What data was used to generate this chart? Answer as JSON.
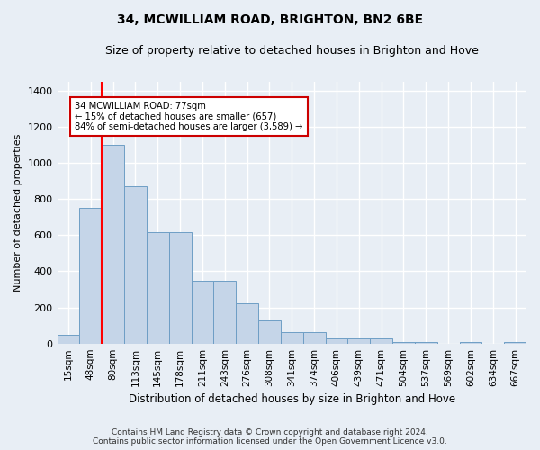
{
  "title": "34, MCWILLIAM ROAD, BRIGHTON, BN2 6BE",
  "subtitle": "Size of property relative to detached houses in Brighton and Hove",
  "xlabel": "Distribution of detached houses by size in Brighton and Hove",
  "ylabel": "Number of detached properties",
  "footer_line1": "Contains HM Land Registry data © Crown copyright and database right 2024.",
  "footer_line2": "Contains public sector information licensed under the Open Government Licence v3.0.",
  "bar_labels": [
    "15sqm",
    "48sqm",
    "80sqm",
    "113sqm",
    "145sqm",
    "178sqm",
    "211sqm",
    "243sqm",
    "276sqm",
    "308sqm",
    "341sqm",
    "374sqm",
    "406sqm",
    "439sqm",
    "471sqm",
    "504sqm",
    "537sqm",
    "569sqm",
    "602sqm",
    "634sqm",
    "667sqm"
  ],
  "bar_values": [
    50,
    750,
    1100,
    870,
    615,
    615,
    345,
    345,
    225,
    130,
    65,
    65,
    30,
    30,
    30,
    10,
    10,
    0,
    10,
    0,
    10
  ],
  "bar_color": "#c5d5e8",
  "bar_edge_color": "#6e9ec5",
  "redline_x": 1.5,
  "annotation_title": "34 MCWILLIAM ROAD: 77sqm",
  "annotation_line2": "← 15% of detached houses are smaller (657)",
  "annotation_line3": "84% of semi-detached houses are larger (3,589) →",
  "annotation_box_color": "#ffffff",
  "annotation_box_edge": "#cc0000",
  "ylim": [
    0,
    1450
  ],
  "yticks": [
    0,
    200,
    400,
    600,
    800,
    1000,
    1200,
    1400
  ],
  "bg_color": "#e8eef5",
  "grid_color": "#ffffff",
  "title_fontsize": 10,
  "subtitle_fontsize": 9
}
